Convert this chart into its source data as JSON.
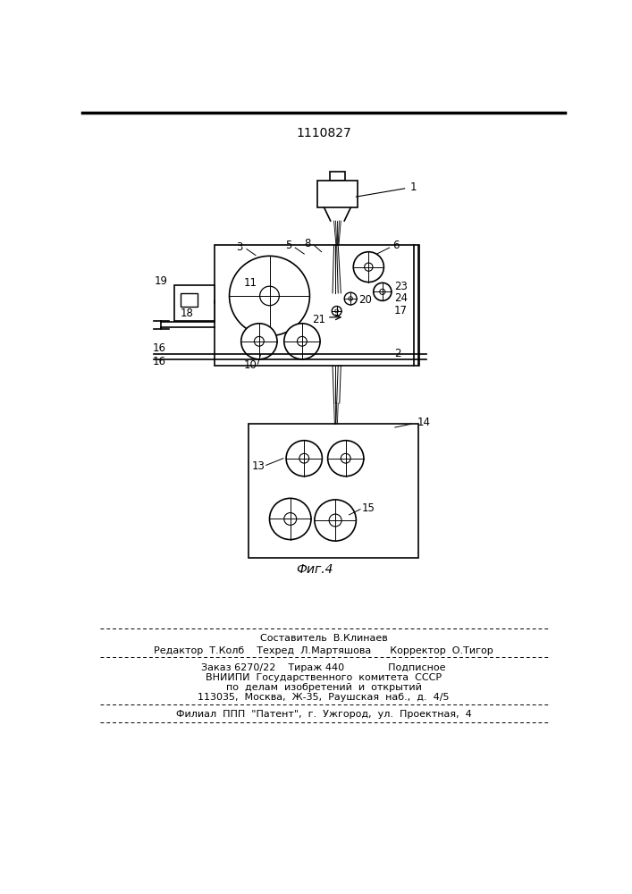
{
  "title": "1110827",
  "fig_label": "Фиг.4",
  "footer_line1": "Составитель  В.Клинаев",
  "footer_line2": "Редактор  Т.Колб    Техред  Л.Мартяшова      Корректор  О.Тигор",
  "footer_line3": "Заказ 6270/22    Тираж 440              Подписное",
  "footer_line4": "ВНИИПИ  Государственного  комитета  СССР",
  "footer_line5": "по  делам  изобретений  и  открытий",
  "footer_line6": "113035,  Москва,  Ж-35,  Раушская  наб.,  д.  4/5",
  "footer_line7": "Филиал  ППП  \"Патент\",  г.  Ужгород,  ул.  Проектная,  4",
  "bg_color": "#ffffff"
}
